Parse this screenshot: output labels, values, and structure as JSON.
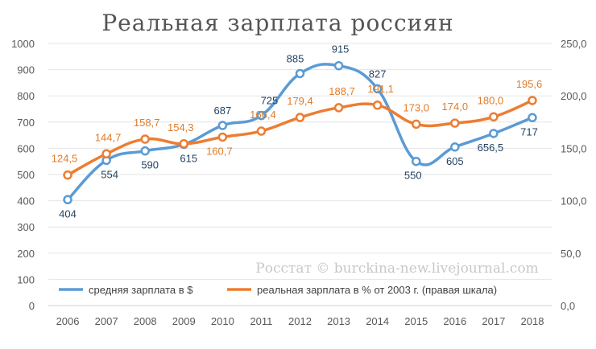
{
  "chart_data": {
    "type": "line",
    "title": "Реальная зарплата россиян",
    "watermark": "Росстат © burckina-new.livejournal.com",
    "categories": [
      "2006",
      "2007",
      "2008",
      "2009",
      "2010",
      "2011",
      "2012",
      "2013",
      "2014",
      "2015",
      "2016",
      "2017",
      "2018"
    ],
    "left_axis": {
      "ylim": [
        0,
        1000
      ],
      "ticks": [
        "0",
        "100",
        "200",
        "300",
        "400",
        "500",
        "600",
        "700",
        "800",
        "900",
        "1000"
      ]
    },
    "right_axis": {
      "ylim": [
        0,
        250
      ],
      "ticks": [
        "0,0",
        "50,0",
        "100,0",
        "150,0",
        "200,0",
        "250,0"
      ]
    },
    "grid": true,
    "legend_position": "bottom-inside",
    "series": [
      {
        "name": "средняя зарплата в $",
        "axis": "left",
        "color": "#5b9bd5",
        "values": [
          404,
          554,
          590,
          615,
          687,
          725,
          885,
          915,
          827,
          550,
          605,
          656.5,
          717
        ],
        "labels": [
          "404",
          "554",
          "590",
          "615",
          "687",
          "725",
          "885",
          "915",
          "827",
          "550",
          "605",
          "656,5",
          "717"
        ]
      },
      {
        "name": "реальная зарплата в % от 2003 г. (правая шкала)",
        "axis": "right",
        "color": "#ed7d31",
        "values": [
          124.5,
          144.7,
          158.7,
          154.3,
          160.7,
          166.4,
          179.4,
          188.7,
          191.1,
          173.0,
          174.0,
          180.0,
          195.6
        ],
        "labels": [
          "124,5",
          "144,7",
          "158,7",
          "154,3",
          "160,7",
          "166,4",
          "179,4",
          "188,7",
          "191,1",
          "173,0",
          "174,0",
          "180,0",
          "195,6"
        ]
      }
    ]
  }
}
